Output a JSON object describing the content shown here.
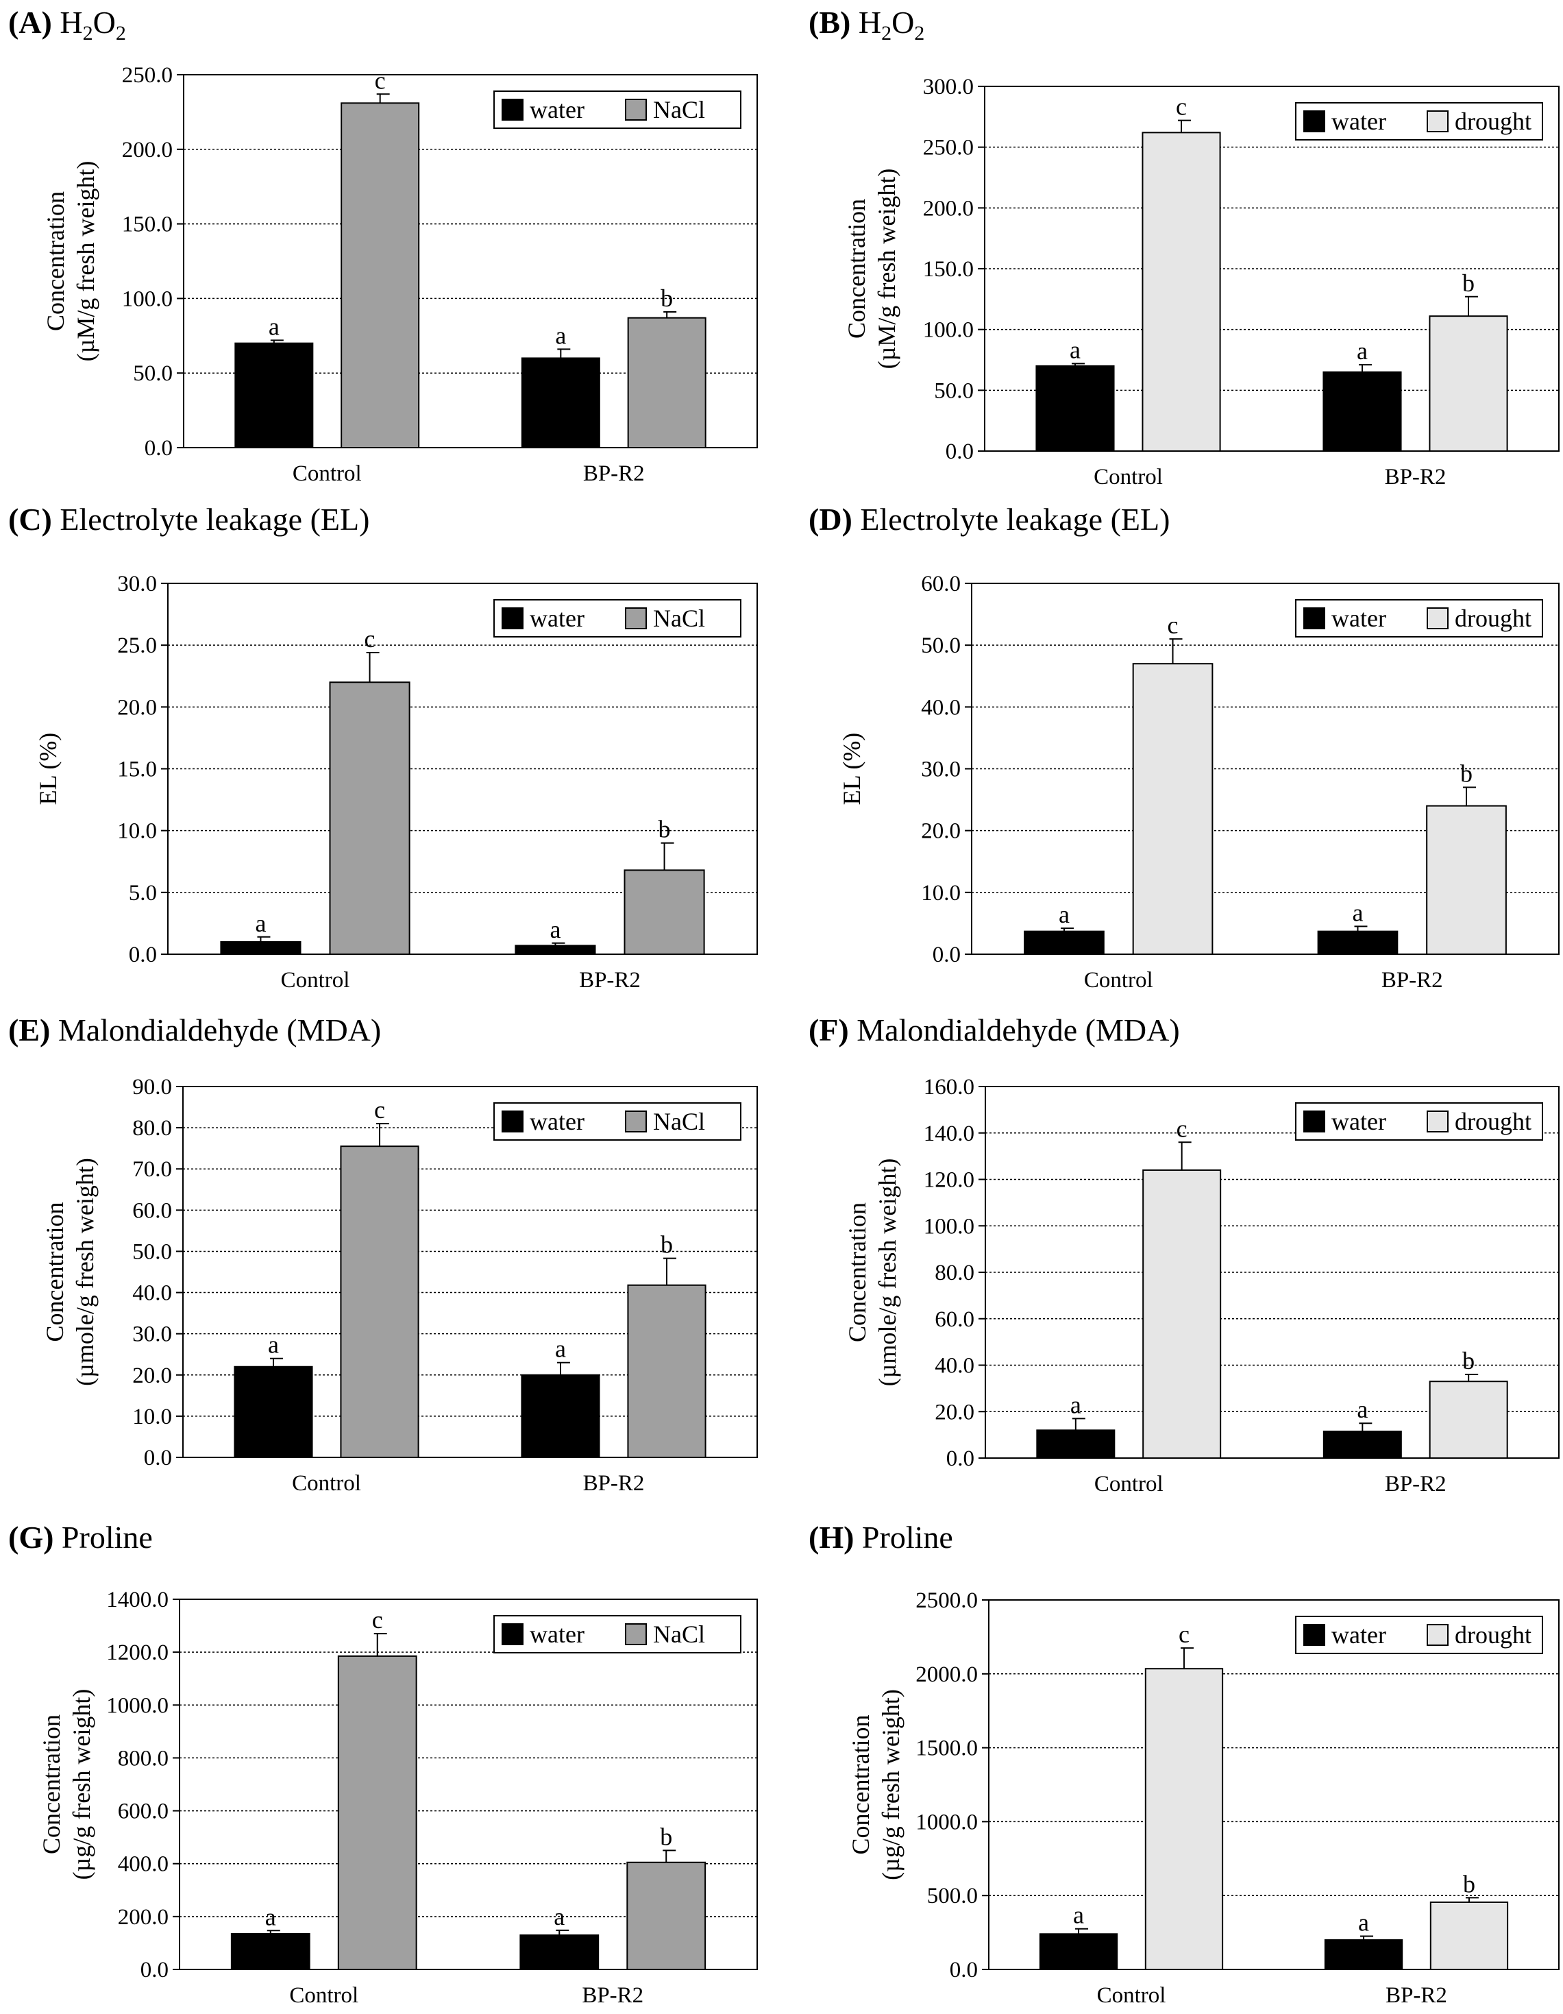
{
  "figure": {
    "colors": {
      "water": "#000000",
      "NaCl": "#a0a0a0",
      "drought": "#e6e6e6",
      "axis": "#000000",
      "grid": "#000000"
    },
    "categories": [
      "Control",
      "BP-R2"
    ]
  },
  "chart_data": [
    {
      "panel": "A",
      "type": "bar",
      "title_label": "(A)",
      "title_parts": [
        "H",
        "2",
        "O",
        "2"
      ],
      "ylabel_lines": [
        "Concentration",
        "(µM/g fresh weight)"
      ],
      "ylim": [
        0,
        250
      ],
      "ytick_step": 50,
      "yticks": [
        "0.0",
        "50.0",
        "100.0",
        "150.0",
        "200.0",
        "250.0"
      ],
      "categories": [
        "Control",
        "BP-R2"
      ],
      "legend": [
        "water",
        "NaCl"
      ],
      "legend_position": "top-right",
      "series": [
        {
          "name": "water",
          "color": "#000000",
          "values": [
            70,
            60
          ],
          "errors": [
            2,
            6
          ],
          "letters": [
            "a",
            "a"
          ]
        },
        {
          "name": "NaCl",
          "color": "#a0a0a0",
          "values": [
            231,
            87
          ],
          "errors": [
            6,
            4
          ],
          "letters": [
            "c",
            "b"
          ]
        }
      ]
    },
    {
      "panel": "B",
      "type": "bar",
      "title_label": "(B)",
      "title_parts": [
        "H",
        "2",
        "O",
        "2"
      ],
      "ylabel_lines": [
        "Concentration",
        "(µM/g fresh weight)"
      ],
      "ylim": [
        0,
        300
      ],
      "ytick_step": 50,
      "yticks": [
        "0.0",
        "50.0",
        "100.0",
        "150.0",
        "200.0",
        "250.0",
        "300.0"
      ],
      "categories": [
        "Control",
        "BP-R2"
      ],
      "legend": [
        "water",
        "drought"
      ],
      "legend_position": "top-right",
      "series": [
        {
          "name": "water",
          "color": "#000000",
          "values": [
            70,
            65
          ],
          "errors": [
            2,
            6
          ],
          "letters": [
            "a",
            "a"
          ]
        },
        {
          "name": "drought",
          "color": "#e6e6e6",
          "values": [
            262,
            111
          ],
          "errors": [
            10,
            16
          ],
          "letters": [
            "c",
            "b"
          ]
        }
      ]
    },
    {
      "panel": "C",
      "type": "bar",
      "title_label": "(C)",
      "title_parts": [
        "Electrolyte  leakage  (EL)"
      ],
      "ylabel_lines": [
        "EL (%)"
      ],
      "ylim": [
        0,
        30
      ],
      "ytick_step": 5,
      "yticks": [
        "0.0",
        "5.0",
        "10.0",
        "15.0",
        "20.0",
        "25.0",
        "30.0"
      ],
      "categories": [
        "Control",
        "BP-R2"
      ],
      "legend": [
        "water",
        "NaCl"
      ],
      "legend_position": "top-right",
      "series": [
        {
          "name": "water",
          "color": "#000000",
          "values": [
            1.0,
            0.7
          ],
          "errors": [
            0.4,
            0.2
          ],
          "letters": [
            "a",
            "a"
          ]
        },
        {
          "name": "NaCl",
          "color": "#a0a0a0",
          "values": [
            22.0,
            6.8
          ],
          "errors": [
            2.4,
            2.2
          ],
          "letters": [
            "c",
            "b"
          ]
        }
      ]
    },
    {
      "panel": "D",
      "type": "bar",
      "title_label": "(D)",
      "title_parts": [
        "Electrolyte  leakage  (EL)"
      ],
      "ylabel_lines": [
        "EL (%)"
      ],
      "ylim": [
        0,
        60
      ],
      "ytick_step": 10,
      "yticks": [
        "0.0",
        "10.0",
        "20.0",
        "30.0",
        "40.0",
        "50.0",
        "60.0"
      ],
      "categories": [
        "Control",
        "BP-R2"
      ],
      "legend": [
        "water",
        "drought"
      ],
      "legend_position": "top-right",
      "series": [
        {
          "name": "water",
          "color": "#000000",
          "values": [
            3.7,
            3.7
          ],
          "errors": [
            0.5,
            0.8
          ],
          "letters": [
            "a",
            "a"
          ]
        },
        {
          "name": "drought",
          "color": "#e6e6e6",
          "values": [
            47,
            24
          ],
          "errors": [
            4,
            3
          ],
          "letters": [
            "c",
            "b"
          ]
        }
      ]
    },
    {
      "panel": "E",
      "type": "bar",
      "title_label": "(E)",
      "title_parts": [
        "Malondialdehyde  (MDA)"
      ],
      "ylabel_lines": [
        "Concentration",
        "(µmole/g fresh weight)"
      ],
      "ylim": [
        0,
        90
      ],
      "ytick_step": 10,
      "yticks": [
        "0.0",
        "10.0",
        "20.0",
        "30.0",
        "40.0",
        "50.0",
        "60.0",
        "70.0",
        "80.0",
        "90.0"
      ],
      "categories": [
        "Control",
        "BP-R2"
      ],
      "legend": [
        "water",
        "NaCl"
      ],
      "legend_position": "top-right",
      "series": [
        {
          "name": "water",
          "color": "#000000",
          "values": [
            22,
            20
          ],
          "errors": [
            2,
            3
          ],
          "letters": [
            "a",
            "a"
          ]
        },
        {
          "name": "NaCl",
          "color": "#a0a0a0",
          "values": [
            75.5,
            41.8
          ],
          "errors": [
            5.5,
            6.5
          ],
          "letters": [
            "c",
            "b"
          ]
        }
      ]
    },
    {
      "panel": "F",
      "type": "bar",
      "title_label": "(F)",
      "title_parts": [
        "Malondialdehyde  (MDA)"
      ],
      "ylabel_lines": [
        "Concentration",
        "(µmole/g fresh weight)"
      ],
      "ylim": [
        0,
        160
      ],
      "ytick_step": 20,
      "yticks": [
        "0.0",
        "20.0",
        "40.0",
        "60.0",
        "80.0",
        "100.0",
        "120.0",
        "140.0",
        "160.0"
      ],
      "categories": [
        "Control",
        "BP-R2"
      ],
      "legend": [
        "water",
        "drought"
      ],
      "legend_position": "top-right",
      "series": [
        {
          "name": "water",
          "color": "#000000",
          "values": [
            12,
            11.5
          ],
          "errors": [
            5,
            3.5
          ],
          "letters": [
            "a",
            "a"
          ]
        },
        {
          "name": "drought",
          "color": "#e6e6e6",
          "values": [
            124,
            33
          ],
          "errors": [
            12,
            3
          ],
          "letters": [
            "c",
            "b"
          ]
        }
      ]
    },
    {
      "panel": "G",
      "type": "bar",
      "title_label": "(G)",
      "title_parts": [
        "Proline"
      ],
      "ylabel_lines": [
        "Concentration",
        "(µg/g fresh weight)"
      ],
      "ylim": [
        0,
        1400
      ],
      "ytick_step": 200,
      "yticks": [
        "0.0",
        "200.0",
        "400.0",
        "600.0",
        "800.0",
        "1000.0",
        "1200.0",
        "1400.0"
      ],
      "categories": [
        "Control",
        "BP-R2"
      ],
      "legend": [
        "water",
        "NaCl"
      ],
      "legend_position": "top-right",
      "series": [
        {
          "name": "water",
          "color": "#000000",
          "values": [
            135,
            130
          ],
          "errors": [
            12,
            18
          ],
          "letters": [
            "a",
            "a"
          ]
        },
        {
          "name": "NaCl",
          "color": "#a0a0a0",
          "values": [
            1185,
            405
          ],
          "errors": [
            85,
            45
          ],
          "letters": [
            "c",
            "b"
          ]
        }
      ]
    },
    {
      "panel": "H",
      "type": "bar",
      "title_label": "(H)",
      "title_parts": [
        "Proline"
      ],
      "ylabel_lines": [
        "Concentration",
        "(µg/g fresh weight)"
      ],
      "ylim": [
        0,
        2500
      ],
      "ytick_step": 500,
      "yticks": [
        "0.0",
        "500.0",
        "1000.0",
        "1500.0",
        "2000.0",
        "2500.0"
      ],
      "categories": [
        "Control",
        "BP-R2"
      ],
      "legend": [
        "water",
        "drought"
      ],
      "legend_position": "top-right",
      "series": [
        {
          "name": "water",
          "color": "#000000",
          "values": [
            240,
            200
          ],
          "errors": [
            35,
            25
          ],
          "letters": [
            "a",
            "a"
          ]
        },
        {
          "name": "drought",
          "color": "#e6e6e6",
          "values": [
            2035,
            455
          ],
          "errors": [
            140,
            30
          ],
          "letters": [
            "c",
            "b"
          ]
        }
      ]
    }
  ]
}
